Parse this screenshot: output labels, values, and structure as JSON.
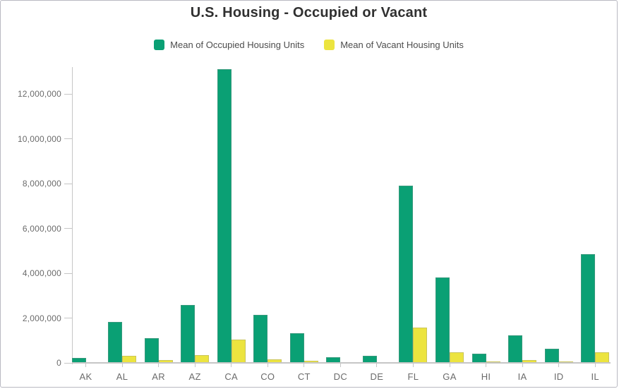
{
  "title": "U.S. Housing - Occupied or Vacant",
  "legend": {
    "items": [
      {
        "label": "Mean of Occupied Housing Units",
        "color": "#0aa074",
        "icon": "occupied-series-swatch"
      },
      {
        "label": "Mean of Vacant Housing Units",
        "color": "#ece43f",
        "icon": "vacant-series-swatch"
      }
    ]
  },
  "chart_data": {
    "type": "bar",
    "title": "U.S. Housing - Occupied or Vacant",
    "categories": [
      "AK",
      "AL",
      "AR",
      "AZ",
      "CA",
      "CO",
      "CT",
      "DC",
      "DE",
      "FL",
      "GA",
      "HI",
      "IA",
      "ID",
      "IL"
    ],
    "series": [
      {
        "name": "Mean of Occupied Housing Units",
        "color": "#0aa074",
        "values": [
          220000,
          1830000,
          1110000,
          2570000,
          13100000,
          2140000,
          1330000,
          240000,
          320000,
          7920000,
          3800000,
          420000,
          1230000,
          620000,
          4850000
        ]
      },
      {
        "name": "Mean of Vacant Housing Units",
        "color": "#ece43f",
        "values": [
          40000,
          320000,
          140000,
          340000,
          1030000,
          160000,
          85000,
          25000,
          45000,
          1560000,
          460000,
          50000,
          120000,
          55000,
          460000
        ]
      }
    ],
    "xlabel": "",
    "ylabel": "",
    "ylim": [
      0,
      13200000
    ],
    "yticks": [
      0,
      2000000,
      4000000,
      6000000,
      8000000,
      10000000,
      12000000
    ],
    "ytick_labels": [
      "0",
      "2,000,000",
      "4,000,000",
      "6,000,000",
      "8,000,000",
      "10,000,000",
      "12,000,000"
    ],
    "grid": false,
    "legend_position": "top"
  }
}
